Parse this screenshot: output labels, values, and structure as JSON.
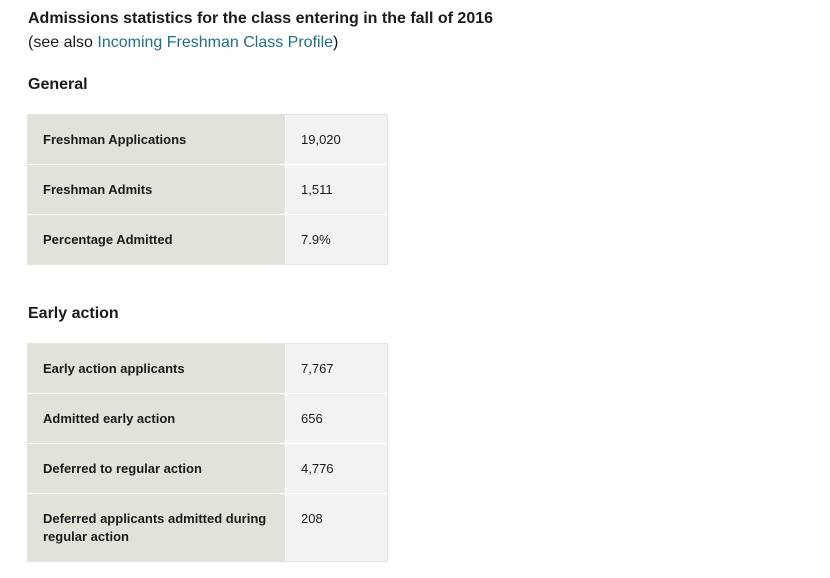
{
  "header": {
    "title": "Admissions statistics for the class entering in the fall of 2016",
    "see_also_prefix": "(see also ",
    "see_also_link": "Incoming Freshman Class Profile",
    "see_also_suffix": ")"
  },
  "general": {
    "heading": "General",
    "rows": [
      {
        "label": "Freshman Applications",
        "value": "19,020"
      },
      {
        "label": "Freshman Admits",
        "value": "1,511"
      },
      {
        "label": "Percentage Admitted",
        "value": "7.9%"
      }
    ]
  },
  "early_action": {
    "heading": "Early action",
    "rows": [
      {
        "label": "Early action applicants",
        "value": "7,767"
      },
      {
        "label": "Admitted early action",
        "value": "656"
      },
      {
        "label": "Deferred to regular action",
        "value": "4,776"
      },
      {
        "label": "Deferred applicants admitted during regular action",
        "value": "208"
      }
    ]
  },
  "colors": {
    "link": "#1f6f8b",
    "label_cell_bg": "#e0e3da",
    "value_cell_bg": "#f2f2f0"
  }
}
